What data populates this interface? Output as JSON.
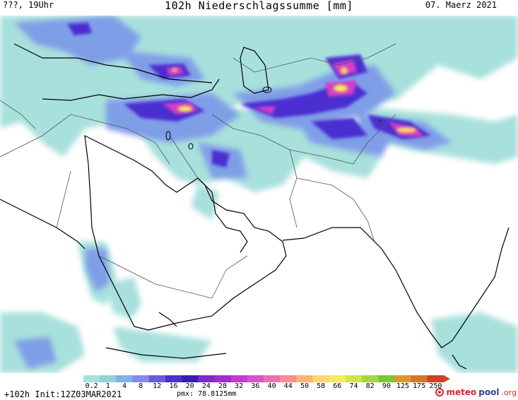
{
  "header": {
    "left": "???, 19Uhr",
    "title": "102h Niederschlagssumme [mm]",
    "date": "07. Maerz 2021"
  },
  "legend": {
    "labels": [
      "0.2",
      "1",
      "4",
      "8",
      "12",
      "16",
      "20",
      "24",
      "28",
      "32",
      "36",
      "40",
      "44",
      "50",
      "58",
      "66",
      "74",
      "82",
      "90",
      "125",
      "175",
      "250"
    ],
    "colors": [
      "#a9e1de",
      "#8fd4d6",
      "#7fb3e0",
      "#8888ee",
      "#6a5ae0",
      "#4b2fd0",
      "#3a1bb8",
      "#7a2ad0",
      "#a22ad2",
      "#c83ad0",
      "#e04fc8",
      "#ee6fb0",
      "#f78e95",
      "#fcb378",
      "#fbd868",
      "#f2ee55",
      "#cfe646",
      "#a5d83a",
      "#7bc830",
      "#d99a2a",
      "#d27828",
      "#d0402a"
    ]
  },
  "map": {
    "region": "Middle East / South Asia",
    "marker_symbol": "+"
  },
  "footer": {
    "lead": "+102h",
    "init": "Init:12Z03MAR2021",
    "pmx": "pmx: 78.8125mm",
    "logo_a": "meteo",
    "logo_b": "pool",
    "logo_c": ".org"
  }
}
